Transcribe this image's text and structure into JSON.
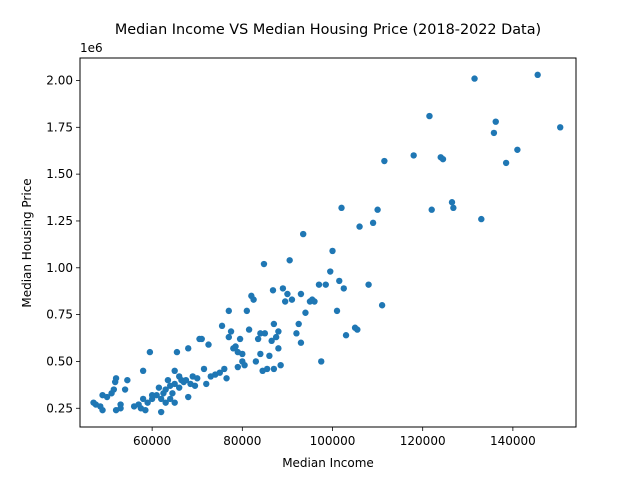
{
  "chart_data": {
    "type": "scatter",
    "title": "Median Income VS Median Housing Price (2018-2022 Data)",
    "xlabel": "Median Income",
    "ylabel": "Median Housing Price",
    "y_offset_label": "1e6",
    "xlim": [
      44000,
      154000
    ],
    "ylim": [
      0.15,
      2.12
    ],
    "xticks": [
      60000,
      80000,
      100000,
      120000,
      140000
    ],
    "xtick_labels": [
      "60000",
      "80000",
      "100000",
      "120000",
      "140000"
    ],
    "yticks": [
      0.25,
      0.5,
      0.75,
      1.0,
      1.25,
      1.5,
      1.75,
      2.0
    ],
    "ytick_labels": [
      "0.25",
      "0.50",
      "0.75",
      "1.00",
      "1.25",
      "1.50",
      "1.75",
      "2.00"
    ],
    "grid": false,
    "point_color": "#1f77b4",
    "points": [
      [
        47000,
        0.28
      ],
      [
        47500,
        0.27
      ],
      [
        48500,
        0.26
      ],
      [
        49000,
        0.32
      ],
      [
        49000,
        0.24
      ],
      [
        50000,
        0.31
      ],
      [
        51000,
        0.33
      ],
      [
        51500,
        0.35
      ],
      [
        51800,
        0.39
      ],
      [
        52000,
        0.41
      ],
      [
        52000,
        0.24
      ],
      [
        53000,
        0.27
      ],
      [
        53000,
        0.25
      ],
      [
        54000,
        0.35
      ],
      [
        54500,
        0.4
      ],
      [
        56000,
        0.26
      ],
      [
        57000,
        0.27
      ],
      [
        57500,
        0.25
      ],
      [
        58000,
        0.45
      ],
      [
        58000,
        0.3
      ],
      [
        58500,
        0.24
      ],
      [
        59000,
        0.28
      ],
      [
        59500,
        0.55
      ],
      [
        60000,
        0.3
      ],
      [
        60000,
        0.32
      ],
      [
        61000,
        0.32
      ],
      [
        61500,
        0.36
      ],
      [
        62000,
        0.3
      ],
      [
        62000,
        0.23
      ],
      [
        62500,
        0.33
      ],
      [
        63000,
        0.35
      ],
      [
        63000,
        0.28
      ],
      [
        63500,
        0.4
      ],
      [
        64000,
        0.37
      ],
      [
        64000,
        0.3
      ],
      [
        64500,
        0.33
      ],
      [
        65000,
        0.45
      ],
      [
        65000,
        0.38
      ],
      [
        65000,
        0.28
      ],
      [
        65500,
        0.55
      ],
      [
        66000,
        0.42
      ],
      [
        66000,
        0.36
      ],
      [
        66500,
        0.4
      ],
      [
        67000,
        0.39
      ],
      [
        67500,
        0.4
      ],
      [
        68000,
        0.31
      ],
      [
        68000,
        0.57
      ],
      [
        68500,
        0.38
      ],
      [
        69000,
        0.42
      ],
      [
        69500,
        0.37
      ],
      [
        70000,
        0.41
      ],
      [
        70500,
        0.62
      ],
      [
        71000,
        0.62
      ],
      [
        71500,
        0.46
      ],
      [
        72000,
        0.38
      ],
      [
        72500,
        0.59
      ],
      [
        73000,
        0.42
      ],
      [
        74000,
        0.43
      ],
      [
        75000,
        0.44
      ],
      [
        75500,
        0.69
      ],
      [
        76000,
        0.46
      ],
      [
        76500,
        0.41
      ],
      [
        77000,
        0.77
      ],
      [
        77000,
        0.63
      ],
      [
        77500,
        0.66
      ],
      [
        78000,
        0.57
      ],
      [
        78500,
        0.58
      ],
      [
        79000,
        0.55
      ],
      [
        79000,
        0.47
      ],
      [
        79500,
        0.62
      ],
      [
        80000,
        0.54
      ],
      [
        80000,
        0.5
      ],
      [
        80500,
        0.48
      ],
      [
        81000,
        0.77
      ],
      [
        81500,
        0.67
      ],
      [
        82000,
        0.85
      ],
      [
        82500,
        0.83
      ],
      [
        83000,
        0.5
      ],
      [
        83500,
        0.62
      ],
      [
        84000,
        0.65
      ],
      [
        84000,
        0.54
      ],
      [
        84500,
        0.45
      ],
      [
        84800,
        1.02
      ],
      [
        85000,
        0.65
      ],
      [
        85500,
        0.46
      ],
      [
        86000,
        0.53
      ],
      [
        86500,
        0.61
      ],
      [
        86800,
        0.88
      ],
      [
        87000,
        0.7
      ],
      [
        87000,
        0.46
      ],
      [
        87500,
        0.63
      ],
      [
        88000,
        0.66
      ],
      [
        88000,
        0.57
      ],
      [
        88500,
        0.48
      ],
      [
        89000,
        0.89
      ],
      [
        89500,
        0.82
      ],
      [
        90000,
        0.86
      ],
      [
        90500,
        1.04
      ],
      [
        91000,
        0.83
      ],
      [
        92000,
        0.65
      ],
      [
        92500,
        0.7
      ],
      [
        93000,
        0.86
      ],
      [
        93000,
        0.6
      ],
      [
        93500,
        1.18
      ],
      [
        94000,
        0.76
      ],
      [
        95000,
        0.82
      ],
      [
        95500,
        0.83
      ],
      [
        96000,
        0.82
      ],
      [
        97000,
        0.91
      ],
      [
        97500,
        0.5
      ],
      [
        98500,
        0.91
      ],
      [
        99500,
        0.98
      ],
      [
        100000,
        1.09
      ],
      [
        101000,
        0.77
      ],
      [
        101500,
        0.93
      ],
      [
        102000,
        1.32
      ],
      [
        102500,
        0.89
      ],
      [
        103000,
        0.64
      ],
      [
        105000,
        0.68
      ],
      [
        105500,
        0.67
      ],
      [
        106000,
        1.22
      ],
      [
        108000,
        0.91
      ],
      [
        109000,
        1.24
      ],
      [
        110000,
        1.31
      ],
      [
        111000,
        0.8
      ],
      [
        111500,
        1.57
      ],
      [
        118000,
        1.6
      ],
      [
        121500,
        1.81
      ],
      [
        122000,
        1.31
      ],
      [
        124000,
        1.59
      ],
      [
        124500,
        1.58
      ],
      [
        126500,
        1.35
      ],
      [
        126800,
        1.32
      ],
      [
        131500,
        2.01
      ],
      [
        133000,
        1.26
      ],
      [
        135800,
        1.72
      ],
      [
        136200,
        1.78
      ],
      [
        138500,
        1.56
      ],
      [
        141000,
        1.63
      ],
      [
        145500,
        2.03
      ],
      [
        150500,
        1.75
      ]
    ]
  }
}
